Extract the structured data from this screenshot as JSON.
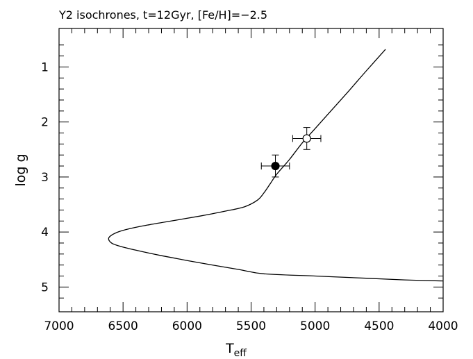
{
  "chart_data": {
    "type": "scatter",
    "title": "Y2 isochrones, t=12Gyr, [Fe/H]=−2.5",
    "xlabel": {
      "main": "T",
      "sub": "eff"
    },
    "ylabel": "log g",
    "xlim": [
      7000,
      4000
    ],
    "ylim": [
      5.45,
      0.3
    ],
    "x_ticks": [
      7000,
      6500,
      6000,
      5500,
      5000,
      4500,
      4000
    ],
    "x_tick_labels": [
      "7000",
      "6500",
      "6000",
      "5500",
      "5000",
      "4500",
      "4000"
    ],
    "y_ticks": [
      1,
      2,
      3,
      4,
      5
    ],
    "y_tick_labels": [
      "1",
      "2",
      "3",
      "4",
      "5"
    ],
    "grid": false,
    "series": [
      {
        "kind": "line",
        "x": [
          4450,
          4600,
          4750,
          4900,
          5000,
          5100,
          5200,
          5300,
          5350,
          5400,
          5450,
          5550,
          5700,
          5900,
          6100,
          6300,
          6450,
          6550,
          6610,
          6600,
          6550,
          6400,
          6200,
          5900,
          5600,
          5400,
          5000,
          4600,
          4300,
          4000
        ],
        "y": [
          0.68,
          1.07,
          1.47,
          1.86,
          2.12,
          2.38,
          2.68,
          2.95,
          3.12,
          3.29,
          3.42,
          3.54,
          3.62,
          3.71,
          3.79,
          3.87,
          3.94,
          4.01,
          4.1,
          4.18,
          4.24,
          4.33,
          4.43,
          4.56,
          4.68,
          4.76,
          4.8,
          4.84,
          4.87,
          4.89
        ]
      },
      {
        "kind": "point",
        "marker": "filled-circle",
        "x": 5310,
        "y": 2.8,
        "x_err": 110,
        "y_err": 0.2
      },
      {
        "kind": "point",
        "marker": "open-circle",
        "x": 5065,
        "y": 2.3,
        "x_err": 110,
        "y_err": 0.2
      }
    ]
  }
}
